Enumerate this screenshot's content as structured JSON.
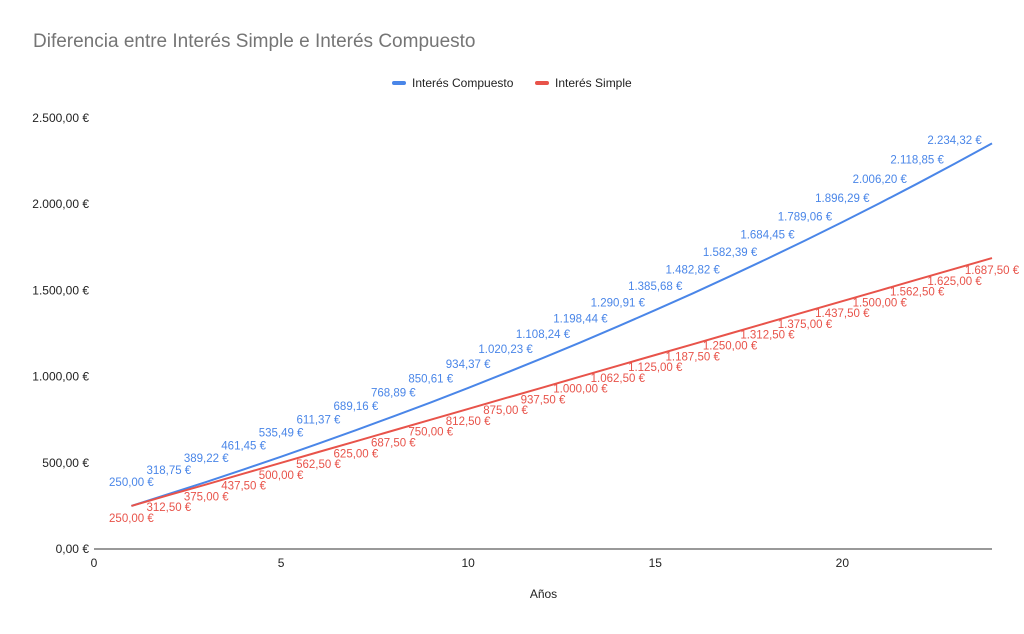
{
  "chart_data": {
    "type": "line",
    "title": "Diferencia entre Interés Simple e Interés Compuesto",
    "xlabel": "Años",
    "ylabel": "",
    "xlim": [
      0,
      24
    ],
    "ylim": [
      0,
      2500
    ],
    "x_ticks": [
      "0",
      "5",
      "10",
      "15",
      "20"
    ],
    "y_ticks": [
      "0,00 €",
      "500,00 €",
      "1.000,00 €",
      "1.500,00 €",
      "2.000,00 €",
      "2.500,00 €"
    ],
    "legend_position": "top",
    "x": [
      1,
      2,
      3,
      4,
      5,
      6,
      7,
      8,
      9,
      10,
      11,
      12,
      13,
      14,
      15,
      16,
      17,
      18,
      19,
      20,
      21,
      22,
      23,
      24
    ],
    "series": [
      {
        "name": "Interés Compuesto",
        "color": "#4a86e8",
        "values": [
          250.0,
          318.75,
          389.22,
          461.45,
          535.49,
          611.37,
          689.16,
          768.89,
          850.61,
          934.37,
          1020.23,
          1108.24,
          1198.44,
          1290.91,
          1385.68,
          1482.82,
          1582.39,
          1684.45,
          1789.06,
          1896.29,
          2006.2,
          2118.85,
          2234.32,
          2352.68
        ],
        "labels": [
          "250,00 €",
          "318,75 €",
          "389,22 €",
          "461,45 €",
          "535,49 €",
          "611,37 €",
          "689,16 €",
          "768,89 €",
          "850,61 €",
          "934,37 €",
          "1.020,23 €",
          "1.108,24 €",
          "1.198,44 €",
          "1.290,91 €",
          "1.385,68 €",
          "1.482,82 €",
          "1.582,39 €",
          "1.684,45 €",
          "1.789,06 €",
          "1.896,29 €",
          "2.006,20 €",
          "2.118,85 €",
          "2.234,32 €",
          ""
        ]
      },
      {
        "name": "Interés Simple",
        "color": "#e8534a",
        "values": [
          250.0,
          312.5,
          375.0,
          437.5,
          500.0,
          562.5,
          625.0,
          687.5,
          750.0,
          812.5,
          875.0,
          937.5,
          1000.0,
          1062.5,
          1125.0,
          1187.5,
          1250.0,
          1312.5,
          1375.0,
          1437.5,
          1500.0,
          1562.5,
          1625.0,
          1687.5
        ],
        "labels": [
          "250,00 €",
          "312,50 €",
          "375,00 €",
          "437,50 €",
          "500,00 €",
          "562,50 €",
          "625,00 €",
          "687,50 €",
          "750,00 €",
          "812,50 €",
          "875,00 €",
          "937,50 €",
          "1.000,00 €",
          "1.062,50 €",
          "1.125,00 €",
          "1.187,50 €",
          "1.250,00 €",
          "1.312,50 €",
          "1.375,00 €",
          "1.437,50 €",
          "1.500,00 €",
          "1.562,50 €",
          "1.625,00 €",
          "1.687,50 €"
        ]
      }
    ]
  }
}
